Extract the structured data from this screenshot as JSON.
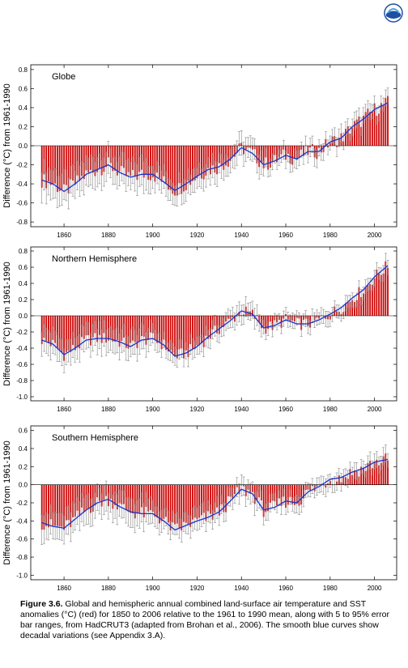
{
  "logo": {
    "icon": "noaa-logo-icon"
  },
  "colors": {
    "bars": "#cc0000",
    "smooth": "#1a33cc",
    "errorbars": "#888888"
  },
  "chart_data": [
    {
      "type": "bar",
      "title": "Globe",
      "xlabel": "",
      "ylabel": "Difference (°C) from 1961-1990",
      "xlim": [
        1845,
        2010
      ],
      "ylim": [
        -0.85,
        0.85
      ],
      "yticks": [
        -0.8,
        -0.6,
        -0.4,
        -0.2,
        0.0,
        0.2,
        0.4,
        0.6,
        0.8
      ],
      "xticks": [
        1860,
        1880,
        1900,
        1920,
        1940,
        1960,
        1980,
        2000
      ],
      "years_start": 1850,
      "years_end": 2006,
      "smooth_years": [
        1850,
        1855,
        1860,
        1865,
        1870,
        1875,
        1880,
        1885,
        1890,
        1895,
        1900,
        1905,
        1910,
        1915,
        1920,
        1925,
        1930,
        1935,
        1940,
        1945,
        1950,
        1955,
        1960,
        1965,
        1970,
        1975,
        1980,
        1985,
        1990,
        1995,
        2000,
        2006
      ],
      "smooth_values": [
        -0.36,
        -0.4,
        -0.48,
        -0.4,
        -0.3,
        -0.25,
        -0.2,
        -0.28,
        -0.33,
        -0.3,
        -0.3,
        -0.38,
        -0.47,
        -0.4,
        -0.32,
        -0.25,
        -0.22,
        -0.14,
        -0.02,
        -0.08,
        -0.2,
        -0.16,
        -0.1,
        -0.14,
        -0.06,
        -0.06,
        0.04,
        0.08,
        0.2,
        0.28,
        0.38,
        0.45
      ]
    },
    {
      "type": "bar",
      "title": "Northern Hemisphere",
      "xlabel": "",
      "ylabel": "Difference (°C) from 1961-1990",
      "xlim": [
        1845,
        2010
      ],
      "ylim": [
        -1.05,
        0.85
      ],
      "yticks": [
        -1.0,
        -0.8,
        -0.6,
        -0.4,
        -0.2,
        0.0,
        0.2,
        0.4,
        0.6,
        0.8
      ],
      "xticks": [
        1860,
        1880,
        1900,
        1920,
        1940,
        1960,
        1980,
        2000
      ],
      "years_start": 1850,
      "years_end": 2006,
      "smooth_years": [
        1850,
        1855,
        1860,
        1865,
        1870,
        1875,
        1880,
        1885,
        1890,
        1895,
        1900,
        1905,
        1910,
        1915,
        1920,
        1925,
        1930,
        1935,
        1940,
        1945,
        1950,
        1955,
        1960,
        1965,
        1970,
        1975,
        1980,
        1985,
        1990,
        1995,
        2000,
        2006
      ],
      "smooth_values": [
        -0.3,
        -0.35,
        -0.48,
        -0.4,
        -0.3,
        -0.28,
        -0.28,
        -0.32,
        -0.38,
        -0.3,
        -0.28,
        -0.36,
        -0.5,
        -0.46,
        -0.38,
        -0.26,
        -0.16,
        -0.06,
        0.06,
        0.02,
        -0.15,
        -0.12,
        -0.05,
        -0.1,
        -0.1,
        -0.05,
        0.02,
        0.1,
        0.22,
        0.32,
        0.48,
        0.62
      ]
    },
    {
      "type": "bar",
      "title": "Southern Hemisphere",
      "xlabel": "",
      "ylabel": "Difference (°C) from 1961-1990",
      "xlim": [
        1845,
        2010
      ],
      "ylim": [
        -1.05,
        0.65
      ],
      "yticks": [
        -1.0,
        -0.8,
        -0.6,
        -0.4,
        -0.2,
        0.0,
        0.2,
        0.4,
        0.6
      ],
      "xticks": [
        1860,
        1880,
        1900,
        1920,
        1940,
        1960,
        1980,
        2000
      ],
      "years_start": 1850,
      "years_end": 2006,
      "smooth_years": [
        1850,
        1855,
        1860,
        1865,
        1870,
        1875,
        1880,
        1885,
        1890,
        1895,
        1900,
        1905,
        1910,
        1915,
        1920,
        1925,
        1930,
        1935,
        1940,
        1945,
        1950,
        1955,
        1960,
        1965,
        1970,
        1975,
        1980,
        1985,
        1990,
        1995,
        2000,
        2006
      ],
      "smooth_values": [
        -0.42,
        -0.46,
        -0.48,
        -0.38,
        -0.28,
        -0.2,
        -0.16,
        -0.24,
        -0.3,
        -0.32,
        -0.32,
        -0.4,
        -0.5,
        -0.45,
        -0.4,
        -0.36,
        -0.3,
        -0.18,
        -0.05,
        -0.1,
        -0.28,
        -0.25,
        -0.18,
        -0.2,
        -0.08,
        -0.02,
        0.06,
        0.08,
        0.14,
        0.18,
        0.25,
        0.28
      ]
    }
  ],
  "caption": {
    "label": "Figure 3.6.",
    "text": " Global and hemispheric annual combined land-surface air temperature and SST anomalies (°C) (red) for 1850 to 2006 relative to the 1961 to 1990 mean, along with 5 to 95% error bar ranges, from HadCRUT3 (adapted from Brohan et al., 2006). The smooth blue curves show decadal variations (see Appendix 3.A)."
  }
}
